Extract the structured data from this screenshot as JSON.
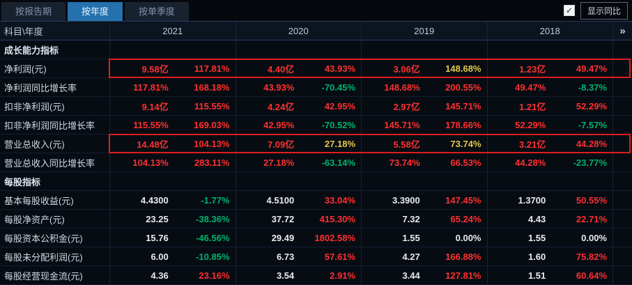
{
  "tabs": [
    {
      "label": "按报告期",
      "active": false
    },
    {
      "label": "按年度",
      "active": true
    },
    {
      "label": "按单季度",
      "active": false
    }
  ],
  "controls": {
    "check_icon": "✓",
    "checkbox_checked": true,
    "show_yoy_label": "显示同比"
  },
  "colors": {
    "positive_red": "#ff3030",
    "negative_green": "#00b26e",
    "accent_yellow": "#e3c94c",
    "neutral_white": "#e8ebf0",
    "active_tab_blue": "#2471ad",
    "highlight_border_red": "#df1d1d"
  },
  "table": {
    "header": {
      "subject": "科目\\年度",
      "years": [
        "2021",
        "2020",
        "2019",
        "2018"
      ],
      "more_icon": "»"
    },
    "rows": [
      {
        "type": "section",
        "label": "成长能力指标"
      },
      {
        "type": "data",
        "label": "净利润(元)",
        "highlighted": true,
        "cells": [
          {
            "v": "9.58亿",
            "vc": "red",
            "p": "117.81%",
            "pc": "red"
          },
          {
            "v": "4.40亿",
            "vc": "red",
            "p": "43.93%",
            "pc": "red"
          },
          {
            "v": "3.06亿",
            "vc": "red",
            "p": "148.68%",
            "pc": "yellow"
          },
          {
            "v": "1.23亿",
            "vc": "red",
            "p": "49.47%",
            "pc": "red"
          }
        ]
      },
      {
        "type": "data",
        "label": "净利润同比增长率",
        "highlighted": false,
        "cells": [
          {
            "v": "117.81%",
            "vc": "red",
            "p": "168.18%",
            "pc": "red"
          },
          {
            "v": "43.93%",
            "vc": "red",
            "p": "-70.45%",
            "pc": "green"
          },
          {
            "v": "148.68%",
            "vc": "red",
            "p": "200.55%",
            "pc": "red"
          },
          {
            "v": "49.47%",
            "vc": "red",
            "p": "-8.37%",
            "pc": "green"
          }
        ]
      },
      {
        "type": "data",
        "label": "扣非净利润(元)",
        "highlighted": false,
        "cells": [
          {
            "v": "9.14亿",
            "vc": "red",
            "p": "115.55%",
            "pc": "red"
          },
          {
            "v": "4.24亿",
            "vc": "red",
            "p": "42.95%",
            "pc": "red"
          },
          {
            "v": "2.97亿",
            "vc": "red",
            "p": "145.71%",
            "pc": "red"
          },
          {
            "v": "1.21亿",
            "vc": "red",
            "p": "52.29%",
            "pc": "red"
          }
        ]
      },
      {
        "type": "data",
        "label": "扣非净利润同比增长率",
        "highlighted": false,
        "cells": [
          {
            "v": "115.55%",
            "vc": "red",
            "p": "169.03%",
            "pc": "red"
          },
          {
            "v": "42.95%",
            "vc": "red",
            "p": "-70.52%",
            "pc": "green"
          },
          {
            "v": "145.71%",
            "vc": "red",
            "p": "178.66%",
            "pc": "red"
          },
          {
            "v": "52.29%",
            "vc": "red",
            "p": "-7.57%",
            "pc": "green"
          }
        ]
      },
      {
        "type": "data",
        "label": "营业总收入(元)",
        "highlighted": true,
        "cells": [
          {
            "v": "14.48亿",
            "vc": "red",
            "p": "104.13%",
            "pc": "red"
          },
          {
            "v": "7.09亿",
            "vc": "red",
            "p": "27.18%",
            "pc": "yellow"
          },
          {
            "v": "5.58亿",
            "vc": "red",
            "p": "73.74%",
            "pc": "yellow"
          },
          {
            "v": "3.21亿",
            "vc": "red",
            "p": "44.28%",
            "pc": "red"
          }
        ]
      },
      {
        "type": "data",
        "label": "营业总收入同比增长率",
        "highlighted": false,
        "cells": [
          {
            "v": "104.13%",
            "vc": "red",
            "p": "283.11%",
            "pc": "red"
          },
          {
            "v": "27.18%",
            "vc": "red",
            "p": "-63.14%",
            "pc": "green"
          },
          {
            "v": "73.74%",
            "vc": "red",
            "p": "66.53%",
            "pc": "red"
          },
          {
            "v": "44.28%",
            "vc": "red",
            "p": "-23.77%",
            "pc": "green"
          }
        ]
      },
      {
        "type": "section",
        "label": "每股指标"
      },
      {
        "type": "data",
        "label": "基本每股收益(元)",
        "highlighted": false,
        "cells": [
          {
            "v": "4.4300",
            "vc": "white",
            "p": "-1.77%",
            "pc": "green"
          },
          {
            "v": "4.5100",
            "vc": "white",
            "p": "33.04%",
            "pc": "red"
          },
          {
            "v": "3.3900",
            "vc": "white",
            "p": "147.45%",
            "pc": "red"
          },
          {
            "v": "1.3700",
            "vc": "white",
            "p": "50.55%",
            "pc": "red"
          }
        ]
      },
      {
        "type": "data",
        "label": "每股净资产(元)",
        "highlighted": false,
        "cells": [
          {
            "v": "23.25",
            "vc": "white",
            "p": "-38.36%",
            "pc": "green"
          },
          {
            "v": "37.72",
            "vc": "white",
            "p": "415.30%",
            "pc": "red"
          },
          {
            "v": "7.32",
            "vc": "white",
            "p": "65.24%",
            "pc": "red"
          },
          {
            "v": "4.43",
            "vc": "white",
            "p": "22.71%",
            "pc": "red"
          }
        ]
      },
      {
        "type": "data",
        "label": "每股资本公积金(元)",
        "highlighted": false,
        "cells": [
          {
            "v": "15.76",
            "vc": "white",
            "p": "-46.56%",
            "pc": "green"
          },
          {
            "v": "29.49",
            "vc": "white",
            "p": "1802.58%",
            "pc": "red"
          },
          {
            "v": "1.55",
            "vc": "white",
            "p": "0.00%",
            "pc": "white"
          },
          {
            "v": "1.55",
            "vc": "white",
            "p": "0.00%",
            "pc": "white"
          }
        ]
      },
      {
        "type": "data",
        "label": "每股未分配利润(元)",
        "highlighted": false,
        "cells": [
          {
            "v": "6.00",
            "vc": "white",
            "p": "-10.85%",
            "pc": "green"
          },
          {
            "v": "6.73",
            "vc": "white",
            "p": "57.61%",
            "pc": "red"
          },
          {
            "v": "4.27",
            "vc": "white",
            "p": "166.88%",
            "pc": "red"
          },
          {
            "v": "1.60",
            "vc": "white",
            "p": "75.82%",
            "pc": "red"
          }
        ]
      },
      {
        "type": "data",
        "label": "每股经营现金流(元)",
        "highlighted": false,
        "cells": [
          {
            "v": "4.36",
            "vc": "white",
            "p": "23.16%",
            "pc": "red"
          },
          {
            "v": "3.54",
            "vc": "white",
            "p": "2.91%",
            "pc": "red"
          },
          {
            "v": "3.44",
            "vc": "white",
            "p": "127.81%",
            "pc": "red"
          },
          {
            "v": "1.51",
            "vc": "white",
            "p": "60.64%",
            "pc": "red"
          }
        ]
      }
    ]
  }
}
